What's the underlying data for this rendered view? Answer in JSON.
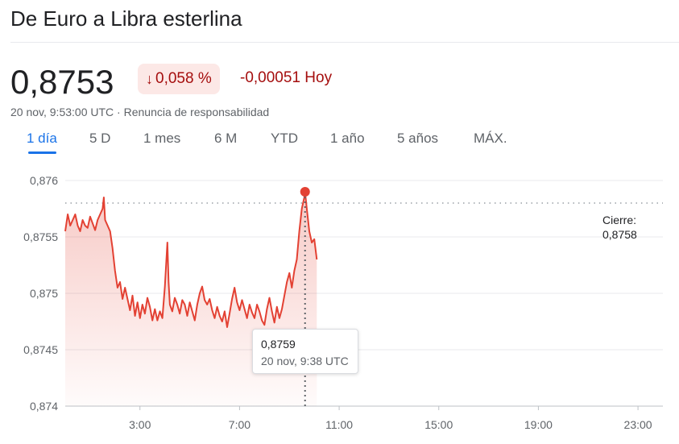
{
  "header": {
    "title": "De Euro a Libra esterlina",
    "price": "0,8753",
    "change_pct": "0,058 %",
    "change_abs": "-0,00051 Hoy",
    "timestamp": "20 nov, 9:53:00 UTC",
    "separator": "·",
    "disclaimer": "Renuncia de responsabilidad",
    "arrow_icon": "arrow-down-icon"
  },
  "tabs": [
    "1 día",
    "5 D",
    "1 mes",
    "6 M",
    "YTD",
    "1 año",
    "5 años",
    "MÁX."
  ],
  "active_tab": 0,
  "colors": {
    "line": "#e34133",
    "negative_text": "#a50e0e",
    "negative_bg": "#fce8e6",
    "accent": "#1a73e8"
  },
  "chart_data": {
    "type": "line",
    "y_tick_labels": [
      "0,876",
      "0,8755",
      "0,875",
      "0,8745",
      "0,874"
    ],
    "y_ticks": [
      0.876,
      0.8755,
      0.875,
      0.8745,
      0.874
    ],
    "ylim": [
      0.874,
      0.8762
    ],
    "x_tick_labels": [
      "3:00",
      "7:00",
      "11:00",
      "15:00",
      "19:00",
      "23:00"
    ],
    "x_ticks": [
      3,
      7,
      11,
      15,
      19,
      23
    ],
    "xlim": [
      0,
      24
    ],
    "grid": true,
    "previous_close": {
      "label": "Cierre:",
      "value": "0,8758",
      "y": 0.8758
    },
    "hover": {
      "value": "0,8759",
      "time": "20 nov, 9:38 UTC",
      "x": 9.63,
      "y": 0.8759
    },
    "series": [
      {
        "points": [
          [
            0.0,
            0.87555
          ],
          [
            0.1,
            0.8757
          ],
          [
            0.2,
            0.8756
          ],
          [
            0.3,
            0.87565
          ],
          [
            0.4,
            0.8757
          ],
          [
            0.5,
            0.8756
          ],
          [
            0.6,
            0.87555
          ],
          [
            0.7,
            0.87565
          ],
          [
            0.8,
            0.8756
          ],
          [
            0.9,
            0.87558
          ],
          [
            1.0,
            0.87568
          ],
          [
            1.1,
            0.87562
          ],
          [
            1.2,
            0.87556
          ],
          [
            1.3,
            0.87565
          ],
          [
            1.4,
            0.8757
          ],
          [
            1.5,
            0.87575
          ],
          [
            1.55,
            0.87585
          ],
          [
            1.6,
            0.87565
          ],
          [
            1.7,
            0.8756
          ],
          [
            1.8,
            0.87555
          ],
          [
            1.9,
            0.8754
          ],
          [
            2.0,
            0.8752
          ],
          [
            2.1,
            0.87505
          ],
          [
            2.2,
            0.8751
          ],
          [
            2.3,
            0.87495
          ],
          [
            2.4,
            0.87505
          ],
          [
            2.5,
            0.87495
          ],
          [
            2.6,
            0.87485
          ],
          [
            2.7,
            0.87498
          ],
          [
            2.8,
            0.8748
          ],
          [
            2.9,
            0.87492
          ],
          [
            3.0,
            0.87478
          ],
          [
            3.1,
            0.8749
          ],
          [
            3.2,
            0.87482
          ],
          [
            3.3,
            0.87496
          ],
          [
            3.4,
            0.87488
          ],
          [
            3.5,
            0.87476
          ],
          [
            3.6,
            0.87486
          ],
          [
            3.7,
            0.87476
          ],
          [
            3.8,
            0.87484
          ],
          [
            3.9,
            0.87478
          ],
          [
            4.0,
            0.87506
          ],
          [
            4.05,
            0.87525
          ],
          [
            4.1,
            0.87545
          ],
          [
            4.15,
            0.8751
          ],
          [
            4.2,
            0.8749
          ],
          [
            4.3,
            0.87484
          ],
          [
            4.4,
            0.87496
          ],
          [
            4.5,
            0.8749
          ],
          [
            4.6,
            0.87482
          ],
          [
            4.7,
            0.87494
          ],
          [
            4.8,
            0.8749
          ],
          [
            4.9,
            0.8748
          ],
          [
            5.0,
            0.87492
          ],
          [
            5.1,
            0.87484
          ],
          [
            5.2,
            0.87476
          ],
          [
            5.3,
            0.8749
          ],
          [
            5.4,
            0.875
          ],
          [
            5.5,
            0.87506
          ],
          [
            5.6,
            0.87494
          ],
          [
            5.7,
            0.8749
          ],
          [
            5.8,
            0.87495
          ],
          [
            5.9,
            0.87485
          ],
          [
            6.0,
            0.87478
          ],
          [
            6.1,
            0.87488
          ],
          [
            6.2,
            0.8748
          ],
          [
            6.3,
            0.87475
          ],
          [
            6.4,
            0.87484
          ],
          [
            6.5,
            0.8747
          ],
          [
            6.6,
            0.87482
          ],
          [
            6.7,
            0.87495
          ],
          [
            6.8,
            0.87505
          ],
          [
            6.9,
            0.87492
          ],
          [
            7.0,
            0.87485
          ],
          [
            7.1,
            0.87494
          ],
          [
            7.2,
            0.87486
          ],
          [
            7.3,
            0.87478
          ],
          [
            7.4,
            0.8749
          ],
          [
            7.5,
            0.87483
          ],
          [
            7.6,
            0.87478
          ],
          [
            7.7,
            0.8749
          ],
          [
            7.8,
            0.87484
          ],
          [
            7.9,
            0.87476
          ],
          [
            8.0,
            0.87472
          ],
          [
            8.1,
            0.87486
          ],
          [
            8.2,
            0.87496
          ],
          [
            8.3,
            0.87484
          ],
          [
            8.4,
            0.87474
          ],
          [
            8.5,
            0.87488
          ],
          [
            8.6,
            0.87478
          ],
          [
            8.7,
            0.87486
          ],
          [
            8.8,
            0.87498
          ],
          [
            8.9,
            0.8751
          ],
          [
            9.0,
            0.87518
          ],
          [
            9.1,
            0.87505
          ],
          [
            9.2,
            0.8752
          ],
          [
            9.3,
            0.8753
          ],
          [
            9.4,
            0.87555
          ],
          [
            9.5,
            0.87575
          ],
          [
            9.6,
            0.87585
          ],
          [
            9.63,
            0.8759
          ],
          [
            9.7,
            0.87575
          ],
          [
            9.8,
            0.87555
          ],
          [
            9.9,
            0.87545
          ],
          [
            10.0,
            0.87548
          ],
          [
            10.1,
            0.8753
          ]
        ]
      }
    ]
  }
}
